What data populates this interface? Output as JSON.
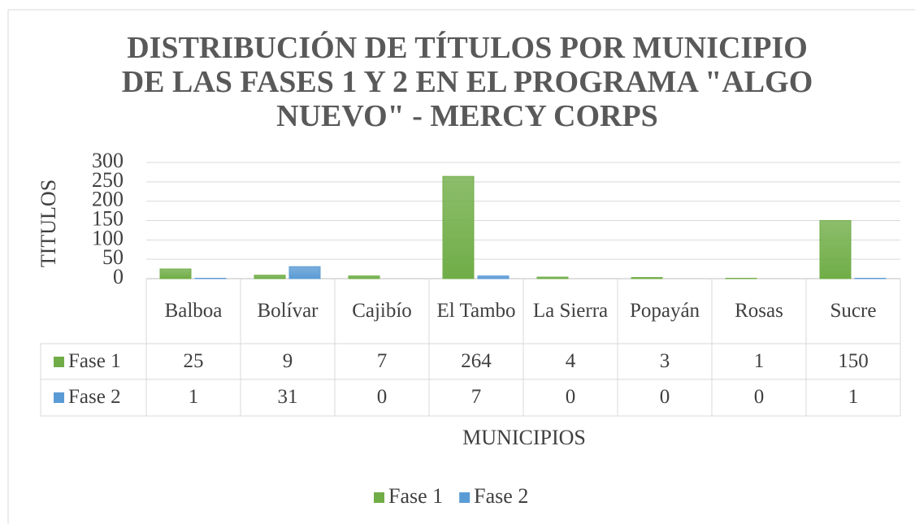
{
  "chart_data": {
    "type": "bar",
    "title": "DISTRIBUCIÓN DE TÍTULOS POR MUNICIPIO DE LAS FASES 1 Y 2 EN EL PROGRAMA \"ALGO NUEVO\" - MERCY CORPS",
    "y_label": "TITULOS",
    "x_label": "MUNICIPIOS",
    "categories": [
      "Balboa",
      "Bolívar",
      "Cajibío",
      "El Tambo",
      "La Sierra",
      "Popayán",
      "Rosas",
      "Sucre"
    ],
    "series": [
      {
        "name": "Fase 1",
        "color": "#70ad47",
        "values": [
          25,
          9,
          7,
          264,
          4,
          3,
          1,
          150
        ]
      },
      {
        "name": "Fase 2",
        "color": "#5b9bd5",
        "values": [
          1,
          31,
          0,
          7,
          0,
          0,
          0,
          1
        ]
      }
    ],
    "ylim": [
      0,
      300
    ],
    "yticks": [
      0,
      50,
      100,
      150,
      200,
      250,
      300
    ],
    "grid": true,
    "legend": "bottom"
  }
}
